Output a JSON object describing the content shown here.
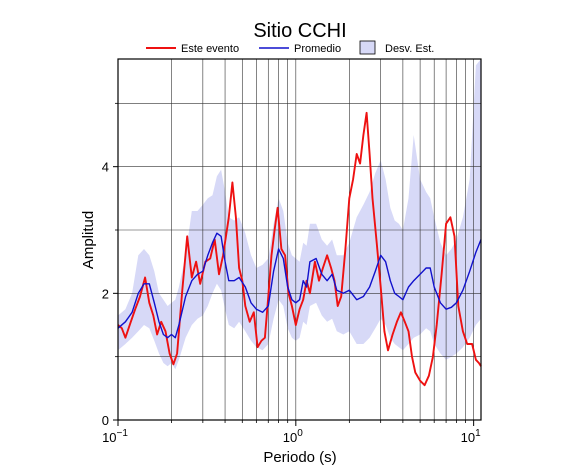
{
  "chart_data": {
    "type": "line",
    "title": "Sitio CCHI",
    "xlabel": "Periodo (s)",
    "ylabel": "Amplitud",
    "xscale": "log",
    "xlim": [
      0.1,
      11
    ],
    "ylim": [
      0,
      5.7
    ],
    "grid": true,
    "legend_position": "top",
    "x_ticks": [
      {
        "value": 0.1,
        "base": "10",
        "exp": "−1"
      },
      {
        "value": 1,
        "base": "10",
        "exp": "0"
      },
      {
        "value": 10,
        "base": "10",
        "exp": "1"
      }
    ],
    "y_ticks": [
      {
        "value": 0,
        "label": "0"
      },
      {
        "value": 2,
        "label": "2"
      },
      {
        "value": 4,
        "label": "4"
      }
    ],
    "legend": {
      "event_label": "Este evento",
      "mean_label": "Promedio",
      "std_label": "Desv. Est."
    },
    "colors": {
      "event": "#ee1111",
      "mean": "#1111cc",
      "band": "#d7d9f7",
      "grid": "#333333"
    },
    "series": [
      {
        "name": "Este evento",
        "points": [
          [
            0.1,
            1.5
          ],
          [
            0.105,
            1.45
          ],
          [
            0.11,
            1.3
          ],
          [
            0.118,
            1.55
          ],
          [
            0.125,
            1.75
          ],
          [
            0.133,
            1.95
          ],
          [
            0.142,
            2.25
          ],
          [
            0.15,
            1.85
          ],
          [
            0.158,
            1.65
          ],
          [
            0.166,
            1.35
          ],
          [
            0.175,
            1.55
          ],
          [
            0.185,
            1.4
          ],
          [
            0.195,
            1.05
          ],
          [
            0.205,
            0.88
          ],
          [
            0.215,
            1.05
          ],
          [
            0.23,
            2.05
          ],
          [
            0.245,
            2.9
          ],
          [
            0.26,
            2.25
          ],
          [
            0.275,
            2.5
          ],
          [
            0.29,
            2.15
          ],
          [
            0.31,
            2.5
          ],
          [
            0.33,
            2.55
          ],
          [
            0.35,
            2.85
          ],
          [
            0.37,
            2.3
          ],
          [
            0.39,
            2.6
          ],
          [
            0.42,
            3.2
          ],
          [
            0.44,
            3.75
          ],
          [
            0.46,
            3.2
          ],
          [
            0.48,
            2.4
          ],
          [
            0.5,
            2.2
          ],
          [
            0.52,
            1.8
          ],
          [
            0.55,
            1.55
          ],
          [
            0.58,
            1.7
          ],
          [
            0.61,
            1.15
          ],
          [
            0.64,
            1.25
          ],
          [
            0.67,
            1.3
          ],
          [
            0.7,
            1.95
          ],
          [
            0.73,
            2.6
          ],
          [
            0.76,
            3.0
          ],
          [
            0.79,
            3.35
          ],
          [
            0.83,
            2.7
          ],
          [
            0.87,
            2.6
          ],
          [
            0.91,
            2.0
          ],
          [
            0.95,
            1.8
          ],
          [
            1.0,
            1.5
          ],
          [
            1.05,
            1.75
          ],
          [
            1.1,
            1.9
          ],
          [
            1.15,
            2.2
          ],
          [
            1.2,
            2.0
          ],
          [
            1.28,
            2.5
          ],
          [
            1.35,
            2.2
          ],
          [
            1.42,
            2.4
          ],
          [
            1.5,
            2.6
          ],
          [
            1.58,
            2.4
          ],
          [
            1.65,
            2.2
          ],
          [
            1.72,
            1.8
          ],
          [
            1.8,
            1.95
          ],
          [
            1.9,
            2.7
          ],
          [
            2.0,
            3.5
          ],
          [
            2.1,
            3.8
          ],
          [
            2.2,
            4.2
          ],
          [
            2.3,
            4.05
          ],
          [
            2.4,
            4.5
          ],
          [
            2.5,
            4.85
          ],
          [
            2.6,
            4.2
          ],
          [
            2.7,
            3.5
          ],
          [
            2.85,
            2.8
          ],
          [
            3.0,
            2.1
          ],
          [
            3.15,
            1.4
          ],
          [
            3.3,
            1.1
          ],
          [
            3.5,
            1.35
          ],
          [
            3.7,
            1.55
          ],
          [
            3.9,
            1.7
          ],
          [
            4.1,
            1.55
          ],
          [
            4.3,
            1.4
          ],
          [
            4.5,
            1.0
          ],
          [
            4.7,
            0.75
          ],
          [
            5.0,
            0.62
          ],
          [
            5.3,
            0.55
          ],
          [
            5.6,
            0.7
          ],
          [
            5.9,
            1.0
          ],
          [
            6.2,
            1.5
          ],
          [
            6.6,
            2.3
          ],
          [
            7.0,
            3.1
          ],
          [
            7.4,
            3.2
          ],
          [
            7.8,
            2.9
          ],
          [
            8.2,
            1.8
          ],
          [
            8.7,
            1.4
          ],
          [
            9.2,
            1.2
          ],
          [
            9.8,
            1.2
          ],
          [
            10.3,
            0.95
          ],
          [
            10.7,
            0.9
          ],
          [
            11.0,
            0.85
          ]
        ]
      },
      {
        "name": "Promedio",
        "points": [
          [
            0.1,
            1.45
          ],
          [
            0.11,
            1.55
          ],
          [
            0.12,
            1.7
          ],
          [
            0.13,
            2.0
          ],
          [
            0.14,
            2.15
          ],
          [
            0.15,
            2.15
          ],
          [
            0.16,
            1.85
          ],
          [
            0.17,
            1.55
          ],
          [
            0.18,
            1.35
          ],
          [
            0.19,
            1.3
          ],
          [
            0.2,
            1.35
          ],
          [
            0.21,
            1.3
          ],
          [
            0.22,
            1.5
          ],
          [
            0.24,
            1.95
          ],
          [
            0.26,
            2.2
          ],
          [
            0.28,
            2.3
          ],
          [
            0.3,
            2.35
          ],
          [
            0.32,
            2.6
          ],
          [
            0.34,
            2.8
          ],
          [
            0.36,
            2.95
          ],
          [
            0.38,
            2.9
          ],
          [
            0.4,
            2.5
          ],
          [
            0.42,
            2.2
          ],
          [
            0.45,
            2.2
          ],
          [
            0.48,
            2.25
          ],
          [
            0.52,
            2.1
          ],
          [
            0.56,
            1.85
          ],
          [
            0.6,
            1.75
          ],
          [
            0.65,
            1.7
          ],
          [
            0.7,
            1.8
          ],
          [
            0.75,
            2.35
          ],
          [
            0.8,
            2.7
          ],
          [
            0.85,
            2.55
          ],
          [
            0.9,
            2.1
          ],
          [
            0.95,
            1.9
          ],
          [
            1.0,
            1.85
          ],
          [
            1.05,
            1.9
          ],
          [
            1.1,
            2.2
          ],
          [
            1.15,
            2.1
          ],
          [
            1.2,
            2.5
          ],
          [
            1.3,
            2.55
          ],
          [
            1.4,
            2.3
          ],
          [
            1.5,
            2.2
          ],
          [
            1.6,
            2.3
          ],
          [
            1.7,
            2.05
          ],
          [
            1.85,
            2.0
          ],
          [
            2.0,
            2.05
          ],
          [
            2.2,
            1.9
          ],
          [
            2.4,
            1.95
          ],
          [
            2.6,
            2.1
          ],
          [
            2.8,
            2.35
          ],
          [
            3.0,
            2.6
          ],
          [
            3.2,
            2.5
          ],
          [
            3.4,
            2.2
          ],
          [
            3.6,
            2.0
          ],
          [
            3.8,
            1.95
          ],
          [
            4.0,
            1.9
          ],
          [
            4.3,
            2.1
          ],
          [
            4.6,
            2.2
          ],
          [
            5.0,
            2.3
          ],
          [
            5.4,
            2.4
          ],
          [
            5.7,
            2.4
          ],
          [
            6.0,
            2.1
          ],
          [
            6.5,
            1.85
          ],
          [
            7.0,
            1.75
          ],
          [
            7.5,
            1.78
          ],
          [
            8.0,
            1.85
          ],
          [
            8.7,
            2.05
          ],
          [
            9.5,
            2.35
          ],
          [
            10.3,
            2.65
          ],
          [
            11.0,
            2.85
          ]
        ]
      }
    ],
    "band": {
      "name": "Desv. Est.",
      "upper": [
        [
          0.1,
          1.65
        ],
        [
          0.11,
          1.75
        ],
        [
          0.12,
          2.0
        ],
        [
          0.13,
          2.6
        ],
        [
          0.14,
          2.7
        ],
        [
          0.15,
          2.6
        ],
        [
          0.16,
          2.35
        ],
        [
          0.17,
          2.0
        ],
        [
          0.18,
          1.9
        ],
        [
          0.19,
          1.8
        ],
        [
          0.2,
          1.85
        ],
        [
          0.21,
          1.9
        ],
        [
          0.22,
          2.1
        ],
        [
          0.24,
          2.6
        ],
        [
          0.26,
          3.3
        ],
        [
          0.28,
          3.3
        ],
        [
          0.3,
          3.4
        ],
        [
          0.32,
          3.5
        ],
        [
          0.34,
          3.55
        ],
        [
          0.36,
          3.85
        ],
        [
          0.38,
          3.95
        ],
        [
          0.4,
          3.6
        ],
        [
          0.42,
          3.2
        ],
        [
          0.45,
          3.15
        ],
        [
          0.48,
          3.2
        ],
        [
          0.52,
          2.95
        ],
        [
          0.56,
          2.6
        ],
        [
          0.6,
          2.4
        ],
        [
          0.65,
          2.45
        ],
        [
          0.7,
          2.55
        ],
        [
          0.75,
          3.1
        ],
        [
          0.8,
          3.5
        ],
        [
          0.85,
          3.3
        ],
        [
          0.9,
          2.8
        ],
        [
          0.95,
          2.6
        ],
        [
          1.0,
          2.55
        ],
        [
          1.05,
          2.5
        ],
        [
          1.1,
          2.8
        ],
        [
          1.15,
          2.75
        ],
        [
          1.2,
          3.1
        ],
        [
          1.3,
          3.1
        ],
        [
          1.4,
          2.85
        ],
        [
          1.5,
          2.75
        ],
        [
          1.6,
          2.85
        ],
        [
          1.7,
          2.6
        ],
        [
          1.85,
          2.6
        ],
        [
          2.0,
          2.8
        ],
        [
          2.2,
          3.2
        ],
        [
          2.4,
          3.4
        ],
        [
          2.6,
          3.6
        ],
        [
          2.8,
          3.9
        ],
        [
          3.0,
          4.1
        ],
        [
          3.2,
          3.8
        ],
        [
          3.4,
          3.35
        ],
        [
          3.6,
          3.15
        ],
        [
          3.8,
          3.1
        ],
        [
          4.0,
          3.0
        ],
        [
          4.3,
          3.5
        ],
        [
          4.6,
          4.5
        ],
        [
          5.0,
          3.8
        ],
        [
          5.4,
          3.6
        ],
        [
          5.7,
          3.5
        ],
        [
          6.0,
          3.2
        ],
        [
          6.5,
          2.8
        ],
        [
          7.0,
          2.6
        ],
        [
          7.5,
          2.7
        ],
        [
          8.0,
          2.85
        ],
        [
          8.7,
          3.2
        ],
        [
          9.5,
          3.8
        ],
        [
          10.3,
          5.6
        ],
        [
          11.0,
          5.7
        ]
      ],
      "lower": [
        [
          0.1,
          1.1
        ],
        [
          0.11,
          1.2
        ],
        [
          0.12,
          1.3
        ],
        [
          0.13,
          1.4
        ],
        [
          0.14,
          1.5
        ],
        [
          0.15,
          1.45
        ],
        [
          0.16,
          1.25
        ],
        [
          0.17,
          1.05
        ],
        [
          0.18,
          0.9
        ],
        [
          0.19,
          0.85
        ],
        [
          0.2,
          0.9
        ],
        [
          0.21,
          0.8
        ],
        [
          0.22,
          0.95
        ],
        [
          0.24,
          1.3
        ],
        [
          0.26,
          1.5
        ],
        [
          0.28,
          1.6
        ],
        [
          0.3,
          1.65
        ],
        [
          0.32,
          1.8
        ],
        [
          0.34,
          2.0
        ],
        [
          0.36,
          2.15
        ],
        [
          0.38,
          2.05
        ],
        [
          0.4,
          1.75
        ],
        [
          0.42,
          1.5
        ],
        [
          0.45,
          1.45
        ],
        [
          0.48,
          1.55
        ],
        [
          0.52,
          1.4
        ],
        [
          0.56,
          1.25
        ],
        [
          0.6,
          1.15
        ],
        [
          0.65,
          1.1
        ],
        [
          0.7,
          1.2
        ],
        [
          0.75,
          1.6
        ],
        [
          0.8,
          1.9
        ],
        [
          0.85,
          1.8
        ],
        [
          0.9,
          1.45
        ],
        [
          0.95,
          1.3
        ],
        [
          1.0,
          1.25
        ],
        [
          1.05,
          1.3
        ],
        [
          1.1,
          1.55
        ],
        [
          1.15,
          1.5
        ],
        [
          1.2,
          1.8
        ],
        [
          1.3,
          1.85
        ],
        [
          1.4,
          1.65
        ],
        [
          1.5,
          1.55
        ],
        [
          1.6,
          1.6
        ],
        [
          1.7,
          1.4
        ],
        [
          1.85,
          1.35
        ],
        [
          2.0,
          1.4
        ],
        [
          2.2,
          1.2
        ],
        [
          2.4,
          1.2
        ],
        [
          2.6,
          1.3
        ],
        [
          2.8,
          1.45
        ],
        [
          3.0,
          1.6
        ],
        [
          3.2,
          1.5
        ],
        [
          3.4,
          1.3
        ],
        [
          3.6,
          1.2
        ],
        [
          3.8,
          1.15
        ],
        [
          4.0,
          1.1
        ],
        [
          4.3,
          1.2
        ],
        [
          4.6,
          1.3
        ],
        [
          5.0,
          1.35
        ],
        [
          5.4,
          1.45
        ],
        [
          5.7,
          1.4
        ],
        [
          6.0,
          1.2
        ],
        [
          6.5,
          1.05
        ],
        [
          7.0,
          0.95
        ],
        [
          7.5,
          1.0
        ],
        [
          8.0,
          1.05
        ],
        [
          8.7,
          1.15
        ],
        [
          9.5,
          1.3
        ],
        [
          10.3,
          1.5
        ],
        [
          11.0,
          1.6
        ]
      ]
    }
  }
}
